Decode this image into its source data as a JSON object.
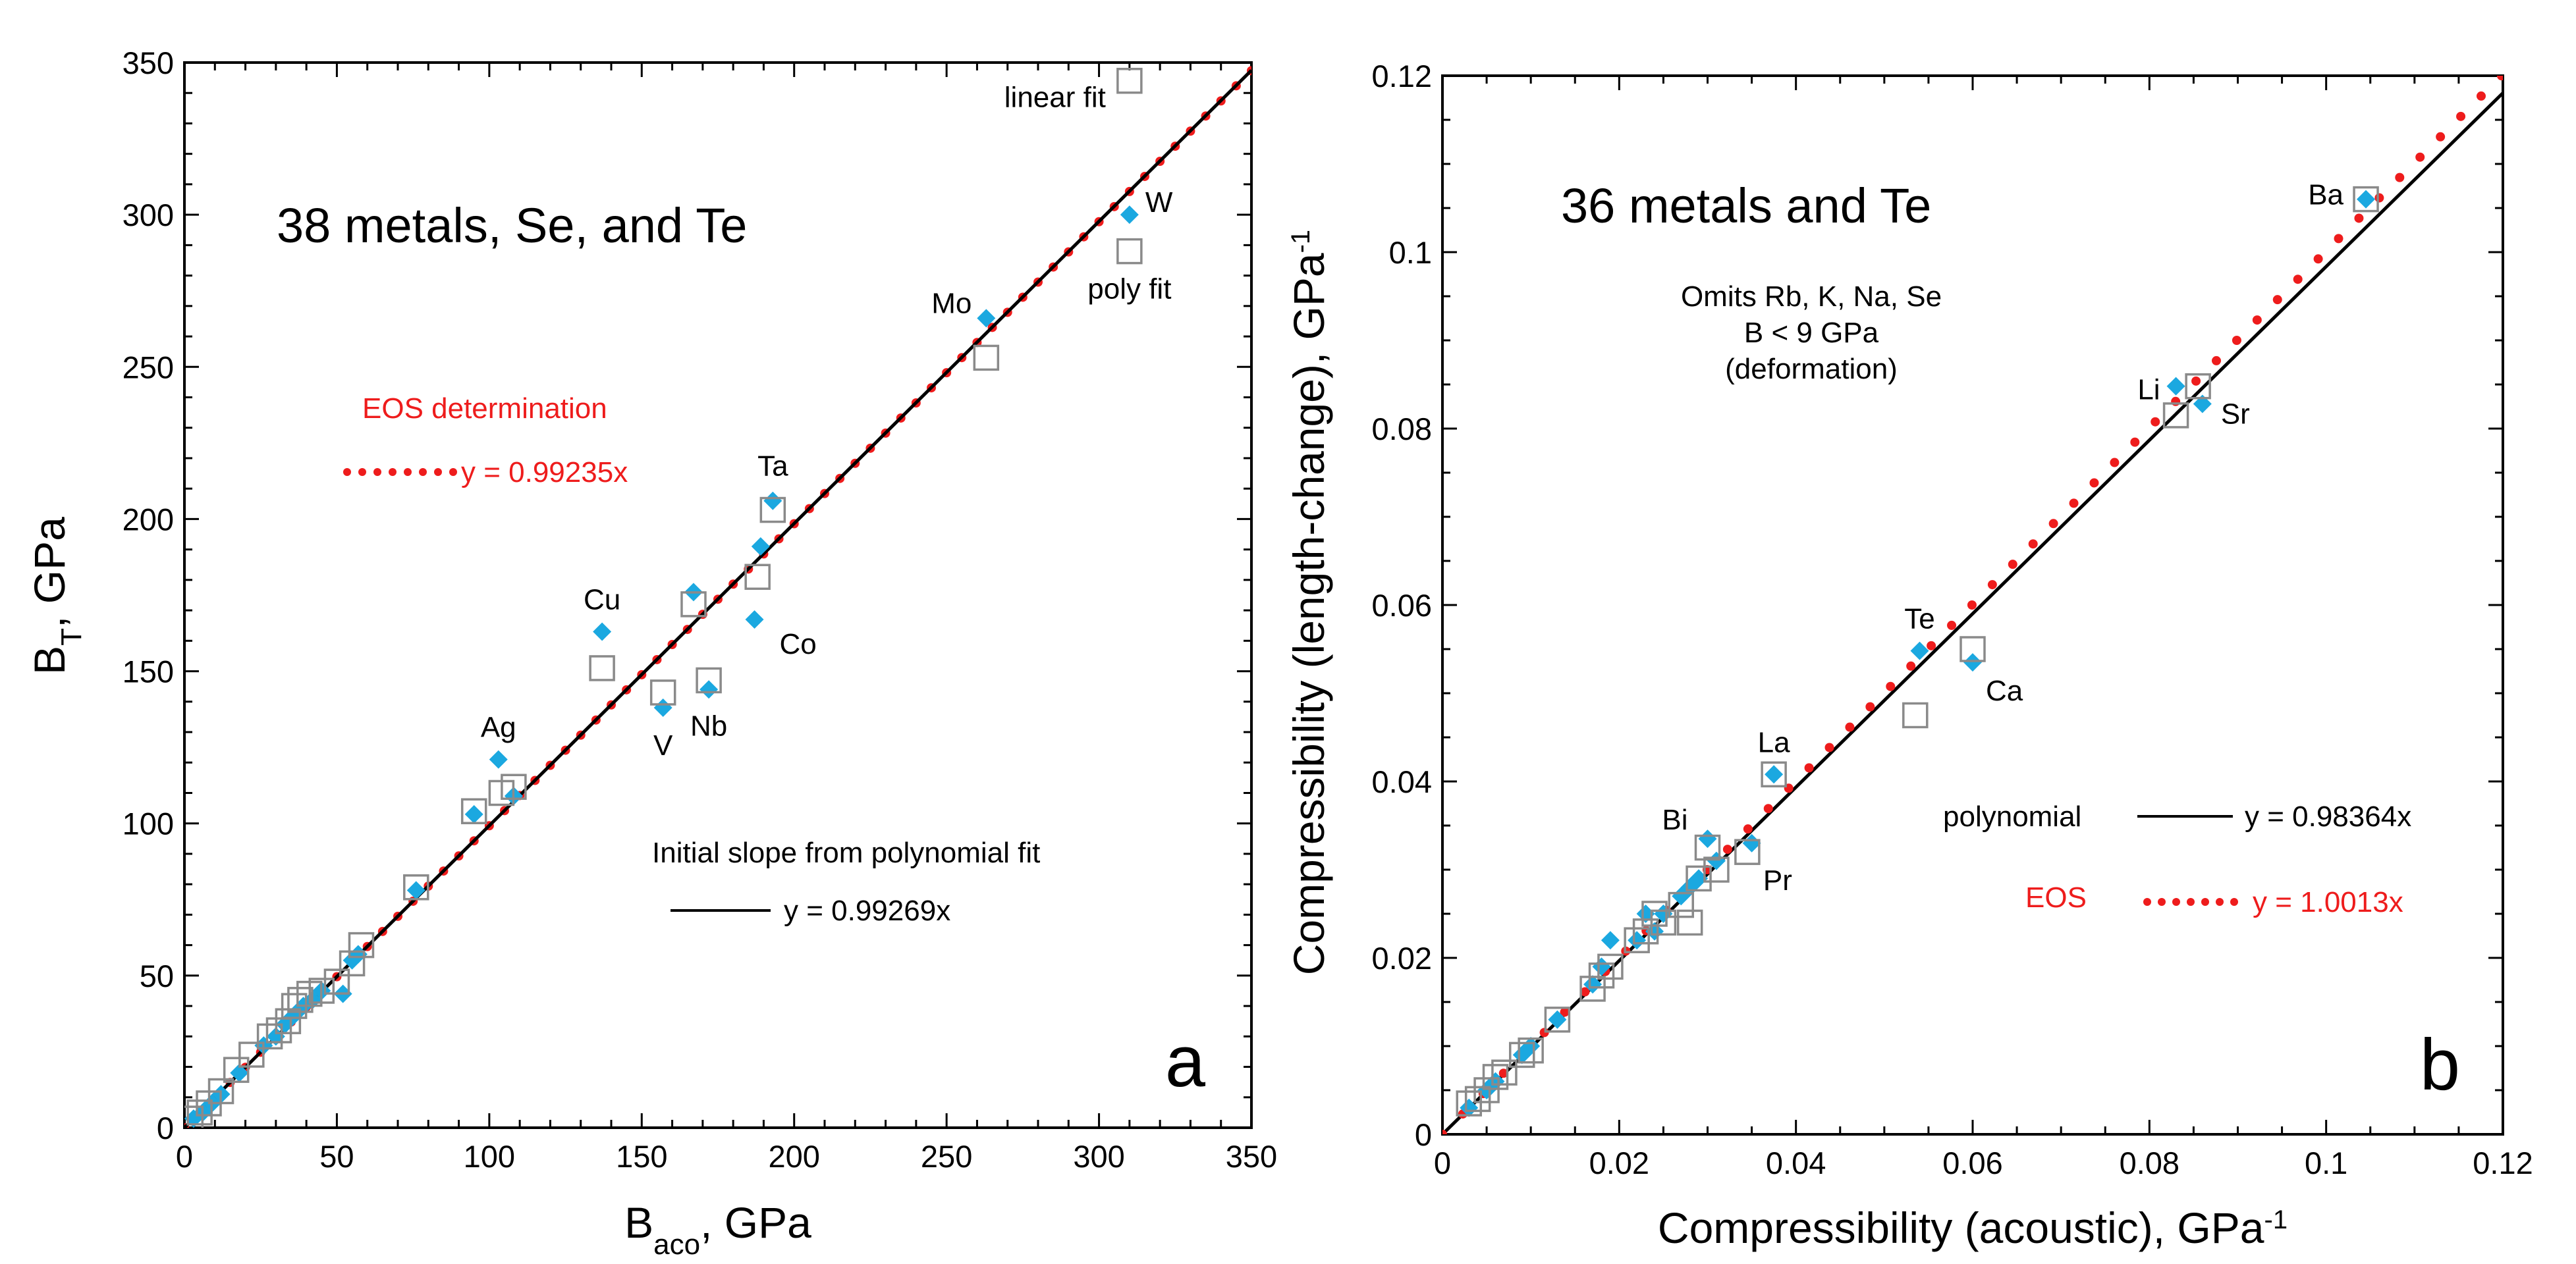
{
  "colors": {
    "eos": "#ee1c1c",
    "diamond": "#1ba8e0",
    "square": "#8a8a8a",
    "axis": "#000000"
  },
  "chart_data": [
    {
      "type": "scatter",
      "panel": "a",
      "title": "38 metals, Se, and Te",
      "xlabel": "B_aco, GPa",
      "ylabel": "B_T, GPa",
      "xlim": [
        0,
        350
      ],
      "ylim": [
        0,
        350
      ],
      "xticks": [
        0,
        50,
        100,
        150,
        200,
        250,
        300,
        350
      ],
      "yticks": [
        0,
        50,
        100,
        150,
        200,
        250,
        300,
        350
      ],
      "grid": false,
      "fits": [
        {
          "name": "EOS determination",
          "equation": "y = 0.99235x",
          "slope": 0.99235,
          "style": "dotted-red"
        },
        {
          "name": "Initial slope from polynomial fit",
          "equation": "y = 0.99269x",
          "slope": 0.99269,
          "style": "solid-black"
        }
      ],
      "series": [
        {
          "name": "diamonds",
          "marker": "diamond",
          "points": [
            [
              3,
              3
            ],
            [
              6,
              5
            ],
            [
              9,
              8
            ],
            [
              12,
              11
            ],
            [
              18,
              18
            ],
            [
              26,
              27
            ],
            [
              30,
              30
            ],
            [
              33,
              34
            ],
            [
              36,
              37
            ],
            [
              39,
              40
            ],
            [
              42,
              42
            ],
            [
              45,
              45
            ],
            [
              52,
              44
            ],
            [
              55,
              55
            ],
            [
              57,
              57
            ],
            [
              76,
              78
            ],
            [
              95,
              103
            ],
            [
              103,
              121
            ],
            [
              108,
              109
            ],
            [
              137,
              163
            ],
            [
              157,
              138
            ],
            [
              167,
              176
            ],
            [
              172,
              144
            ],
            [
              187,
              167
            ],
            [
              189,
              191
            ],
            [
              193,
              206
            ],
            [
              263,
              266
            ],
            [
              310,
              300
            ]
          ]
        },
        {
          "name": "squares",
          "marker": "square",
          "points": [
            [
              2,
              3
            ],
            [
              5,
              5
            ],
            [
              8,
              8
            ],
            [
              12,
              12
            ],
            [
              17,
              19
            ],
            [
              22,
              24
            ],
            [
              28,
              30
            ],
            [
              31,
              32
            ],
            [
              34,
              35
            ],
            [
              36,
              40
            ],
            [
              38,
              42
            ],
            [
              41,
              44
            ],
            [
              45,
              45
            ],
            [
              50,
              48
            ],
            [
              55,
              54
            ],
            [
              58,
              60
            ],
            [
              76,
              79
            ],
            [
              95,
              104
            ],
            [
              104,
              110
            ],
            [
              108,
              112
            ],
            [
              137,
              151
            ],
            [
              157,
              143
            ],
            [
              167,
              172
            ],
            [
              172,
              147
            ],
            [
              188,
              181
            ],
            [
              193,
              203
            ],
            [
              263,
              253
            ],
            [
              310,
              288
            ],
            [
              310,
              344
            ]
          ]
        }
      ],
      "labels": [
        {
          "text": "Ag",
          "x": 103,
          "y": 121
        },
        {
          "text": "Cu",
          "x": 137,
          "y": 163
        },
        {
          "text": "V",
          "x": 157,
          "y": 138
        },
        {
          "text": "Nb",
          "x": 172,
          "y": 144
        },
        {
          "text": "Co",
          "x": 187,
          "y": 167
        },
        {
          "text": "Ta",
          "x": 193,
          "y": 206
        },
        {
          "text": "Mo",
          "x": 263,
          "y": 266
        },
        {
          "text": "W",
          "x": 310,
          "y": 300
        },
        {
          "text": "poly fit",
          "x": 310,
          "y": 288
        },
        {
          "text": "linear fit",
          "x": 310,
          "y": 344
        }
      ],
      "panel_letter": "a"
    },
    {
      "type": "scatter",
      "panel": "b",
      "title": "36 metals and Te",
      "note": [
        "Omits Rb, K, Na, Se",
        "B < 9 GPa",
        "(deformation)"
      ],
      "xlabel": "Compressibility (acoustic), GPa⁻¹",
      "ylabel": "Compressibility (length-change), GPa⁻¹",
      "xlim": [
        0,
        0.12
      ],
      "ylim": [
        0,
        0.12
      ],
      "xticks": [
        0,
        0.02,
        0.04,
        0.06,
        0.08,
        0.1,
        0.12
      ],
      "yticks": [
        0,
        0.02,
        0.04,
        0.06,
        0.08,
        0.1,
        0.12
      ],
      "grid": false,
      "fits": [
        {
          "name": "polynomial",
          "equation": "y = 0.98364x",
          "slope": 0.98364,
          "style": "solid-black"
        },
        {
          "name": "EOS",
          "equation": "y = 1.0013x",
          "slope": 1.0013,
          "style": "dotted-red"
        }
      ],
      "series": [
        {
          "name": "diamonds",
          "marker": "diamond",
          "points": [
            [
              0.003,
              0.003
            ],
            [
              0.005,
              0.005
            ],
            [
              0.006,
              0.006
            ],
            [
              0.009,
              0.009
            ],
            [
              0.01,
              0.01
            ],
            [
              0.013,
              0.013
            ],
            [
              0.017,
              0.017
            ],
            [
              0.018,
              0.019
            ],
            [
              0.019,
              0.022
            ],
            [
              0.022,
              0.022
            ],
            [
              0.023,
              0.025
            ],
            [
              0.024,
              0.023
            ],
            [
              0.025,
              0.025
            ],
            [
              0.027,
              0.027
            ],
            [
              0.028,
              0.028
            ],
            [
              0.029,
              0.029
            ],
            [
              0.03,
              0.0335
            ],
            [
              0.031,
              0.031
            ],
            [
              0.035,
              0.033
            ],
            [
              0.0375,
              0.0408
            ],
            [
              0.054,
              0.0548
            ],
            [
              0.06,
              0.0535
            ],
            [
              0.083,
              0.0848
            ],
            [
              0.086,
              0.0828
            ],
            [
              0.1045,
              0.106
            ]
          ]
        },
        {
          "name": "squares",
          "marker": "square",
          "points": [
            [
              0.003,
              0.0035
            ],
            [
              0.004,
              0.004
            ],
            [
              0.005,
              0.005
            ],
            [
              0.006,
              0.0065
            ],
            [
              0.007,
              0.007
            ],
            [
              0.009,
              0.009
            ],
            [
              0.01,
              0.0095
            ],
            [
              0.013,
              0.013
            ],
            [
              0.017,
              0.0165
            ],
            [
              0.018,
              0.018
            ],
            [
              0.019,
              0.019
            ],
            [
              0.022,
              0.022
            ],
            [
              0.023,
              0.023
            ],
            [
              0.024,
              0.025
            ],
            [
              0.025,
              0.024
            ],
            [
              0.027,
              0.026
            ],
            [
              0.028,
              0.024
            ],
            [
              0.029,
              0.029
            ],
            [
              0.03,
              0.0325
            ],
            [
              0.031,
              0.03
            ],
            [
              0.0345,
              0.032
            ],
            [
              0.0375,
              0.0408
            ],
            [
              0.0535,
              0.0475
            ],
            [
              0.06,
              0.055
            ],
            [
              0.083,
              0.0815
            ],
            [
              0.0855,
              0.0848
            ],
            [
              0.1045,
              0.106
            ]
          ]
        }
      ],
      "labels": [
        {
          "text": "Bi",
          "x": 0.03,
          "y": 0.0335
        },
        {
          "text": "Pr",
          "x": 0.0345,
          "y": 0.032
        },
        {
          "text": "La",
          "x": 0.0375,
          "y": 0.0408
        },
        {
          "text": "Te",
          "x": 0.054,
          "y": 0.0548
        },
        {
          "text": "Ca",
          "x": 0.06,
          "y": 0.0535
        },
        {
          "text": "Li",
          "x": 0.083,
          "y": 0.0848
        },
        {
          "text": "Sr",
          "x": 0.086,
          "y": 0.0828
        },
        {
          "text": "Ba",
          "x": 0.1045,
          "y": 0.106
        }
      ],
      "panel_letter": "b"
    }
  ]
}
